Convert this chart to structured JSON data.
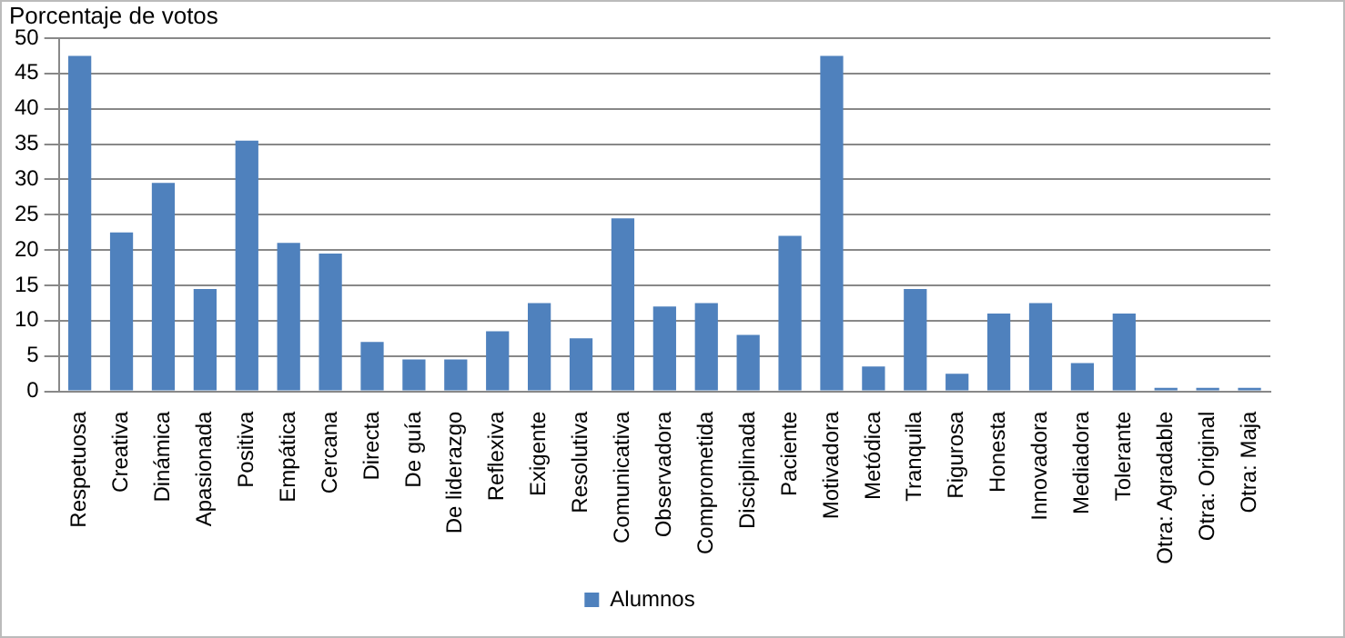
{
  "chart_data": {
    "type": "bar",
    "ylabel": "Porcentaje de votos",
    "categories": [
      "Respetuosa",
      "Creativa",
      "Dinámica",
      "Apasionada",
      "Positiva",
      "Empática",
      "Cercana",
      "Directa",
      "De guía",
      "De liderazgo",
      "Reflexiva",
      "Exigente",
      "Resolutiva",
      "Comunicativa",
      "Observadora",
      "Comprometida",
      "Disciplinada",
      "Paciente",
      "Motivadora",
      "Metódica",
      "Tranquila",
      "Rigurosa",
      "Honesta",
      "Innovadora",
      "Mediadora",
      "Tolerante",
      "Otra: Agradable",
      "Otra: Original",
      "Otra: Maja"
    ],
    "series": [
      {
        "name": "Alumnos",
        "color": "#4f81bd",
        "values": [
          47.5,
          22.5,
          29.5,
          14.5,
          35.5,
          21,
          19.5,
          7,
          4.5,
          4.5,
          8.5,
          12.5,
          7.5,
          24.5,
          12,
          12.5,
          8,
          22,
          47.5,
          3.5,
          14.5,
          2.5,
          11,
          12.5,
          4,
          11,
          0.5,
          0.5,
          0.5
        ]
      }
    ],
    "ylim": [
      0,
      50
    ],
    "yticks": [
      0,
      5,
      10,
      15,
      20,
      25,
      30,
      35,
      40,
      45,
      50
    ],
    "grid": "y",
    "legend": "bottom"
  }
}
